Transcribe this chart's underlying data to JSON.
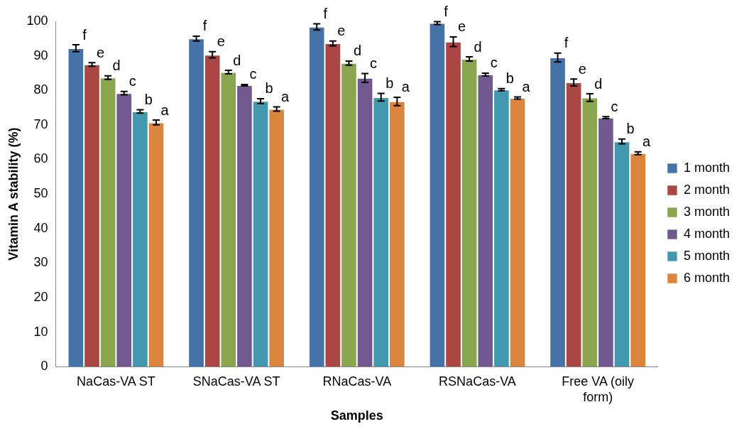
{
  "chart_data": {
    "type": "bar",
    "xlabel": "Samples",
    "ylabel": "Vitamin A stability (%)",
    "categories": [
      "NaCas-VA ST",
      "SNaCas-VA ST",
      "RNaCas-VA",
      "RSNaCas-VA",
      "Free VA (oily form)"
    ],
    "ylim": [
      0,
      100
    ],
    "yticks": [
      0,
      10,
      20,
      30,
      40,
      50,
      60,
      70,
      80,
      90,
      100
    ],
    "grid": false,
    "legend": "right",
    "series": [
      {
        "name": "1 month",
        "color": "#4572a7",
        "values": [
          92.2,
          95,
          98.4,
          99.5,
          89.5
        ],
        "errors": [
          1,
          0.7,
          0.9,
          0.4,
          1.3
        ],
        "value_labels": [
          "f",
          "f",
          "f",
          "f",
          "f"
        ]
      },
      {
        "name": "2 month",
        "color": "#aa4643",
        "values": [
          87.5,
          90.3,
          93.6,
          94.1,
          82.3
        ],
        "errors": [
          0.5,
          0.9,
          0.7,
          1.4,
          1.0
        ],
        "value_labels": [
          "e",
          "e",
          "e",
          "e",
          "e"
        ]
      },
      {
        "name": "3 month",
        "color": "#89a54e",
        "values": [
          83.7,
          85.3,
          87.9,
          89.1,
          77.9
        ],
        "errors": [
          0.5,
          0.5,
          0.6,
          0.6,
          1.1
        ],
        "value_labels": [
          "d",
          "d",
          "d",
          "d",
          "d"
        ]
      },
      {
        "name": "4 month",
        "color": "#71588f",
        "values": [
          79.2,
          81.5,
          83.6,
          84.6,
          72.1
        ],
        "errors": [
          0.5,
          0.2,
          1.3,
          0.4,
          0.3
        ],
        "value_labels": [
          "c",
          "c",
          "c",
          "c",
          "c"
        ]
      },
      {
        "name": "5 month",
        "color": "#4198af",
        "values": [
          73.9,
          76.9,
          78,
          80.2,
          65.2
        ],
        "errors": [
          0.5,
          0.7,
          1.1,
          0.3,
          0.7
        ],
        "value_labels": [
          "b",
          "b",
          "b",
          "b",
          "b"
        ]
      },
      {
        "name": "6 month",
        "color": "#db843d",
        "values": [
          70.7,
          74.6,
          76.8,
          77.8,
          61.8
        ],
        "errors": [
          0.7,
          0.6,
          1.2,
          0.3,
          0.4
        ],
        "value_labels": [
          "a",
          "a",
          "a",
          "a",
          "a"
        ]
      }
    ]
  }
}
